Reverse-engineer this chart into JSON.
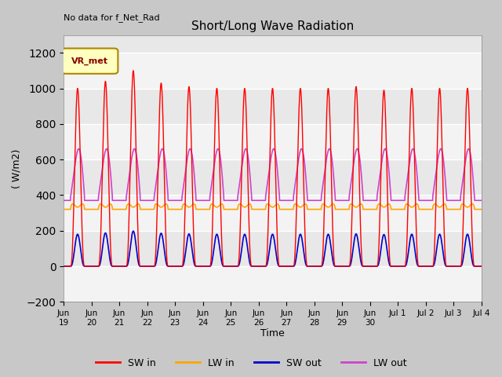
{
  "title": "Short/Long Wave Radiation",
  "xlabel": "Time",
  "ylabel": "( W/m2)",
  "ylim": [
    -200,
    1300
  ],
  "yticks": [
    -200,
    0,
    200,
    400,
    600,
    800,
    1000,
    1200
  ],
  "date_labels": [
    "Jun\n19",
    "Jun\n20",
    "Jun\n21",
    "Jun\n22",
    "Jun\n23",
    "Jun\n24",
    "Jun\n25",
    "Jun\n26",
    "Jun\n27",
    "Jun\n28",
    "Jun\n29",
    "Jun\n30",
    "Jul 1",
    "Jul 2",
    "Jul 3",
    "Jul 4"
  ],
  "annotation_text": "No data for f_Net_Rad",
  "legend_box_text": "VR_met",
  "sw_in_color": "#ff0000",
  "lw_in_color": "#ffa500",
  "sw_out_color": "#0000cc",
  "lw_out_color": "#cc44cc",
  "fig_bg_color": "#c8c8c8",
  "plot_bg_color": "#e8e8e8",
  "grid_color": "#d0d0d0",
  "sw_in_peaks": [
    1000,
    1040,
    1100,
    1030,
    1010,
    1000,
    1000,
    1000,
    1000,
    1000,
    1010,
    990,
    1000,
    1000,
    1000
  ],
  "days": 15
}
